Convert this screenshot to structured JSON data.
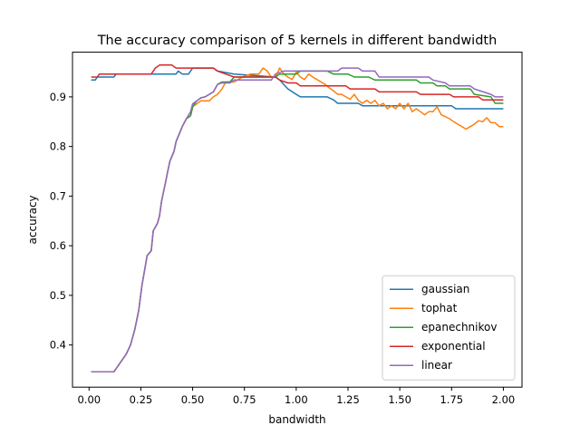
{
  "chart_data": {
    "type": "line",
    "title": "The accuracy comparison of 5 kernels in different bandwidth",
    "xlabel": "bandwidth",
    "ylabel": "accuracy",
    "xlim": [
      -0.08,
      2.09
    ],
    "ylim": [
      0.315,
      0.99
    ],
    "xticks": [
      0.0,
      0.25,
      0.5,
      0.75,
      1.0,
      1.25,
      1.5,
      1.75,
      2.0
    ],
    "xtick_labels": [
      "0.00",
      "0.25",
      "0.50",
      "0.75",
      "1.00",
      "1.25",
      "1.50",
      "1.75",
      "2.00"
    ],
    "yticks": [
      0.4,
      0.5,
      0.6,
      0.7,
      0.8,
      0.9
    ],
    "ytick_labels": [
      "0.4",
      "0.5",
      "0.6",
      "0.7",
      "0.8",
      "0.9"
    ],
    "grid": false,
    "legend_position": "lower right",
    "series": [
      {
        "name": "gaussian",
        "color": "#1f77b4",
        "points": [
          [
            0.01,
            0.934
          ],
          [
            0.03,
            0.934
          ],
          [
            0.04,
            0.94
          ],
          [
            0.12,
            0.94
          ],
          [
            0.13,
            0.946
          ],
          [
            0.42,
            0.946
          ],
          [
            0.43,
            0.952
          ],
          [
            0.45,
            0.946
          ],
          [
            0.48,
            0.946
          ],
          [
            0.5,
            0.958
          ],
          [
            0.6,
            0.958
          ],
          [
            0.62,
            0.952
          ],
          [
            0.7,
            0.946
          ],
          [
            0.9,
            0.94
          ],
          [
            0.92,
            0.934
          ],
          [
            0.96,
            0.916
          ],
          [
            1.0,
            0.905
          ],
          [
            1.02,
            0.9
          ],
          [
            1.15,
            0.9
          ],
          [
            1.18,
            0.894
          ],
          [
            1.2,
            0.887
          ],
          [
            1.3,
            0.887
          ],
          [
            1.32,
            0.882
          ],
          [
            1.75,
            0.882
          ],
          [
            1.77,
            0.876
          ],
          [
            2.0,
            0.876
          ]
        ]
      },
      {
        "name": "tophat",
        "color": "#ff7f0e",
        "points": [
          [
            0.01,
            0.346
          ],
          [
            0.12,
            0.346
          ],
          [
            0.14,
            0.358
          ],
          [
            0.16,
            0.37
          ],
          [
            0.18,
            0.382
          ],
          [
            0.2,
            0.4
          ],
          [
            0.22,
            0.43
          ],
          [
            0.24,
            0.47
          ],
          [
            0.255,
            0.52
          ],
          [
            0.27,
            0.555
          ],
          [
            0.28,
            0.58
          ],
          [
            0.3,
            0.59
          ],
          [
            0.31,
            0.63
          ],
          [
            0.33,
            0.645
          ],
          [
            0.34,
            0.66
          ],
          [
            0.35,
            0.69
          ],
          [
            0.37,
            0.73
          ],
          [
            0.38,
            0.75
          ],
          [
            0.39,
            0.77
          ],
          [
            0.41,
            0.79
          ],
          [
            0.42,
            0.81
          ],
          [
            0.44,
            0.83
          ],
          [
            0.45,
            0.84
          ],
          [
            0.47,
            0.856
          ],
          [
            0.49,
            0.862
          ],
          [
            0.5,
            0.88
          ],
          [
            0.52,
            0.886
          ],
          [
            0.54,
            0.892
          ],
          [
            0.56,
            0.892
          ],
          [
            0.58,
            0.892
          ],
          [
            0.6,
            0.9
          ],
          [
            0.62,
            0.905
          ],
          [
            0.64,
            0.915
          ],
          [
            0.66,
            0.93
          ],
          [
            0.7,
            0.93
          ],
          [
            0.72,
            0.935
          ],
          [
            0.74,
            0.94
          ],
          [
            0.78,
            0.946
          ],
          [
            0.82,
            0.946
          ],
          [
            0.84,
            0.958
          ],
          [
            0.86,
            0.952
          ],
          [
            0.88,
            0.94
          ],
          [
            0.9,
            0.94
          ],
          [
            0.92,
            0.958
          ],
          [
            0.94,
            0.946
          ],
          [
            0.96,
            0.94
          ],
          [
            0.98,
            0.935
          ],
          [
            1.0,
            0.95
          ],
          [
            1.02,
            0.94
          ],
          [
            1.04,
            0.935
          ],
          [
            1.06,
            0.946
          ],
          [
            1.08,
            0.94
          ],
          [
            1.1,
            0.935
          ],
          [
            1.12,
            0.93
          ],
          [
            1.14,
            0.925
          ],
          [
            1.16,
            0.918
          ],
          [
            1.18,
            0.912
          ],
          [
            1.2,
            0.905
          ],
          [
            1.22,
            0.905
          ],
          [
            1.24,
            0.9
          ],
          [
            1.26,
            0.895
          ],
          [
            1.28,
            0.905
          ],
          [
            1.3,
            0.893
          ],
          [
            1.32,
            0.887
          ],
          [
            1.34,
            0.893
          ],
          [
            1.36,
            0.887
          ],
          [
            1.38,
            0.893
          ],
          [
            1.4,
            0.882
          ],
          [
            1.42,
            0.887
          ],
          [
            1.44,
            0.876
          ],
          [
            1.46,
            0.882
          ],
          [
            1.48,
            0.876
          ],
          [
            1.5,
            0.887
          ],
          [
            1.52,
            0.876
          ],
          [
            1.54,
            0.887
          ],
          [
            1.56,
            0.87
          ],
          [
            1.58,
            0.876
          ],
          [
            1.6,
            0.87
          ],
          [
            1.62,
            0.864
          ],
          [
            1.64,
            0.87
          ],
          [
            1.66,
            0.87
          ],
          [
            1.68,
            0.88
          ],
          [
            1.7,
            0.864
          ],
          [
            1.72,
            0.86
          ],
          [
            1.74,
            0.856
          ],
          [
            1.76,
            0.85
          ],
          [
            1.78,
            0.845
          ],
          [
            1.8,
            0.84
          ],
          [
            1.82,
            0.835
          ],
          [
            1.84,
            0.84
          ],
          [
            1.86,
            0.845
          ],
          [
            1.88,
            0.852
          ],
          [
            1.9,
            0.85
          ],
          [
            1.92,
            0.858
          ],
          [
            1.94,
            0.848
          ],
          [
            1.96,
            0.848
          ],
          [
            1.98,
            0.84
          ],
          [
            2.0,
            0.84
          ]
        ]
      },
      {
        "name": "epanechnikov",
        "color": "#2ca02c",
        "points": [
          [
            0.01,
            0.346
          ],
          [
            0.12,
            0.346
          ],
          [
            0.14,
            0.358
          ],
          [
            0.16,
            0.37
          ],
          [
            0.18,
            0.382
          ],
          [
            0.2,
            0.4
          ],
          [
            0.22,
            0.43
          ],
          [
            0.24,
            0.47
          ],
          [
            0.255,
            0.52
          ],
          [
            0.27,
            0.555
          ],
          [
            0.28,
            0.58
          ],
          [
            0.3,
            0.59
          ],
          [
            0.31,
            0.63
          ],
          [
            0.33,
            0.645
          ],
          [
            0.34,
            0.66
          ],
          [
            0.35,
            0.69
          ],
          [
            0.37,
            0.73
          ],
          [
            0.38,
            0.75
          ],
          [
            0.39,
            0.77
          ],
          [
            0.41,
            0.79
          ],
          [
            0.42,
            0.81
          ],
          [
            0.44,
            0.83
          ],
          [
            0.45,
            0.84
          ],
          [
            0.47,
            0.856
          ],
          [
            0.49,
            0.862
          ],
          [
            0.5,
            0.88
          ],
          [
            0.52,
            0.892
          ],
          [
            0.54,
            0.898
          ],
          [
            0.56,
            0.9
          ],
          [
            0.58,
            0.905
          ],
          [
            0.6,
            0.91
          ],
          [
            0.62,
            0.925
          ],
          [
            0.64,
            0.93
          ],
          [
            0.68,
            0.93
          ],
          [
            0.7,
            0.94
          ],
          [
            0.9,
            0.94
          ],
          [
            0.92,
            0.946
          ],
          [
            1.0,
            0.946
          ],
          [
            1.02,
            0.952
          ],
          [
            1.15,
            0.952
          ],
          [
            1.18,
            0.946
          ],
          [
            1.25,
            0.946
          ],
          [
            1.28,
            0.94
          ],
          [
            1.35,
            0.94
          ],
          [
            1.38,
            0.934
          ],
          [
            1.58,
            0.934
          ],
          [
            1.6,
            0.928
          ],
          [
            1.66,
            0.928
          ],
          [
            1.68,
            0.922
          ],
          [
            1.72,
            0.922
          ],
          [
            1.74,
            0.916
          ],
          [
            1.84,
            0.916
          ],
          [
            1.86,
            0.905
          ],
          [
            1.94,
            0.9
          ],
          [
            1.96,
            0.887
          ],
          [
            2.0,
            0.887
          ]
        ]
      },
      {
        "name": "exponential",
        "color": "#d62728",
        "points": [
          [
            0.01,
            0.94
          ],
          [
            0.04,
            0.94
          ],
          [
            0.05,
            0.946
          ],
          [
            0.3,
            0.946
          ],
          [
            0.32,
            0.958
          ],
          [
            0.34,
            0.964
          ],
          [
            0.36,
            0.964
          ],
          [
            0.4,
            0.964
          ],
          [
            0.42,
            0.958
          ],
          [
            0.6,
            0.958
          ],
          [
            0.62,
            0.952
          ],
          [
            0.66,
            0.946
          ],
          [
            0.7,
            0.94
          ],
          [
            0.9,
            0.94
          ],
          [
            0.92,
            0.934
          ],
          [
            0.96,
            0.928
          ],
          [
            1.0,
            0.928
          ],
          [
            1.02,
            0.922
          ],
          [
            1.24,
            0.922
          ],
          [
            1.26,
            0.916
          ],
          [
            1.38,
            0.916
          ],
          [
            1.4,
            0.91
          ],
          [
            1.58,
            0.91
          ],
          [
            1.6,
            0.905
          ],
          [
            1.74,
            0.905
          ],
          [
            1.76,
            0.9
          ],
          [
            1.88,
            0.9
          ],
          [
            1.9,
            0.894
          ],
          [
            2.0,
            0.894
          ]
        ]
      },
      {
        "name": "linear",
        "color": "#9467bd",
        "points": [
          [
            0.01,
            0.346
          ],
          [
            0.12,
            0.346
          ],
          [
            0.14,
            0.358
          ],
          [
            0.16,
            0.37
          ],
          [
            0.18,
            0.382
          ],
          [
            0.2,
            0.4
          ],
          [
            0.22,
            0.43
          ],
          [
            0.24,
            0.47
          ],
          [
            0.255,
            0.52
          ],
          [
            0.27,
            0.555
          ],
          [
            0.28,
            0.58
          ],
          [
            0.3,
            0.59
          ],
          [
            0.31,
            0.63
          ],
          [
            0.33,
            0.645
          ],
          [
            0.34,
            0.66
          ],
          [
            0.35,
            0.69
          ],
          [
            0.37,
            0.73
          ],
          [
            0.38,
            0.75
          ],
          [
            0.39,
            0.77
          ],
          [
            0.41,
            0.79
          ],
          [
            0.42,
            0.81
          ],
          [
            0.44,
            0.83
          ],
          [
            0.45,
            0.84
          ],
          [
            0.47,
            0.856
          ],
          [
            0.49,
            0.87
          ],
          [
            0.5,
            0.886
          ],
          [
            0.52,
            0.892
          ],
          [
            0.54,
            0.898
          ],
          [
            0.56,
            0.9
          ],
          [
            0.58,
            0.905
          ],
          [
            0.6,
            0.91
          ],
          [
            0.62,
            0.925
          ],
          [
            0.64,
            0.928
          ],
          [
            0.68,
            0.928
          ],
          [
            0.7,
            0.934
          ],
          [
            0.88,
            0.934
          ],
          [
            0.9,
            0.946
          ],
          [
            0.94,
            0.952
          ],
          [
            1.2,
            0.952
          ],
          [
            1.22,
            0.958
          ],
          [
            1.3,
            0.958
          ],
          [
            1.32,
            0.952
          ],
          [
            1.38,
            0.952
          ],
          [
            1.4,
            0.94
          ],
          [
            1.64,
            0.94
          ],
          [
            1.66,
            0.934
          ],
          [
            1.72,
            0.928
          ],
          [
            1.74,
            0.922
          ],
          [
            1.84,
            0.922
          ],
          [
            1.86,
            0.916
          ],
          [
            1.94,
            0.905
          ],
          [
            1.96,
            0.9
          ],
          [
            2.0,
            0.9
          ]
        ]
      }
    ]
  }
}
